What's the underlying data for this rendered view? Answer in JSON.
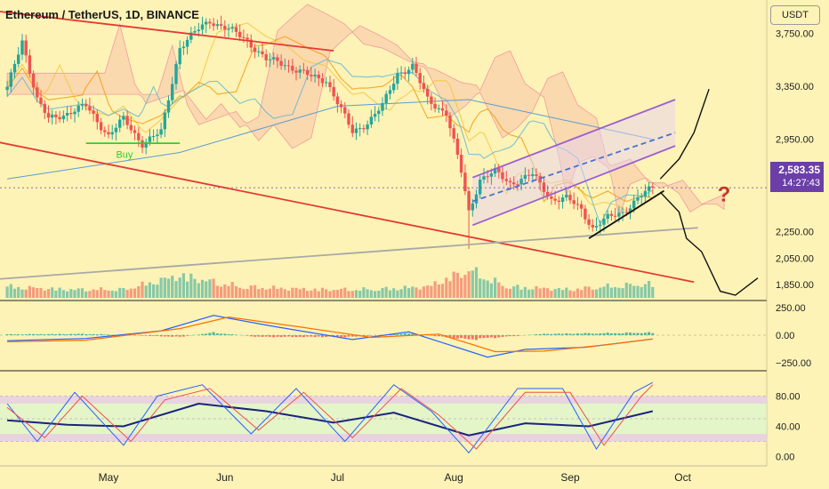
{
  "header": {
    "symbol_title": "Ethereum / TetherUS, 1D, BINANCE",
    "currency_button": "USDT"
  },
  "price_badge": {
    "price": "2,583.35",
    "countdown": "14:27:43"
  },
  "annotation_buy": "Buy",
  "annotation_question": "?",
  "colors": {
    "background": "#fdf3b6",
    "bull": "#26a69a",
    "bear": "#ef5350",
    "channel_red": "#e53935",
    "purple": "#9c5fd0",
    "macd_line": "#2962ff",
    "signal_line": "#ff6d00",
    "stoch_k": "#2962ff",
    "stoch_d": "#ef5350",
    "rsi": "#1a237e"
  },
  "chart_data": [
    {
      "type": "candlestick",
      "pane": "price",
      "title": "Ethereum / TetherUS, 1D, BINANCE",
      "ylim": [
        1750,
        3950
      ],
      "y_ticks": [
        "3,750.00",
        "3,350.00",
        "2,950.00",
        "2,250.00",
        "2,050.00",
        "1,850.00"
      ],
      "y_tick_values": [
        3750,
        3350,
        2950,
        2250,
        2050,
        1850
      ],
      "x_ticks": [
        "May",
        "Jun",
        "Jul",
        "Aug",
        "Sep",
        "Oct"
      ],
      "x_tick_dates": [
        "2024-05-01",
        "2024-06-01",
        "2024-07-01",
        "2024-08-01",
        "2024-09-01",
        "2024-10-01"
      ],
      "last_price": 2583.35,
      "close_path": [
        [
          "2024-04-04",
          3330
        ],
        [
          "2024-04-08",
          3700
        ],
        [
          "2024-04-12",
          3250
        ],
        [
          "2024-04-15",
          3100
        ],
        [
          "2024-04-20",
          3150
        ],
        [
          "2024-04-25",
          3200
        ],
        [
          "2024-05-01",
          2980
        ],
        [
          "2024-05-05",
          3100
        ],
        [
          "2024-05-10",
          2920
        ],
        [
          "2024-05-15",
          3000
        ],
        [
          "2024-05-20",
          3650
        ],
        [
          "2024-05-25",
          3780
        ],
        [
          "2024-05-28",
          3850
        ],
        [
          "2024-06-02",
          3780
        ],
        [
          "2024-06-07",
          3700
        ],
        [
          "2024-06-12",
          3550
        ],
        [
          "2024-06-17",
          3520
        ],
        [
          "2024-06-24",
          3420
        ],
        [
          "2024-06-28",
          3400
        ],
        [
          "2024-07-05",
          3000
        ],
        [
          "2024-07-09",
          3080
        ],
        [
          "2024-07-13",
          3200
        ],
        [
          "2024-07-17",
          3450
        ],
        [
          "2024-07-21",
          3500
        ],
        [
          "2024-07-25",
          3250
        ],
        [
          "2024-07-30",
          3150
        ],
        [
          "2024-08-03",
          2700
        ],
        [
          "2024-08-05",
          2400
        ],
        [
          "2024-08-08",
          2650
        ],
        [
          "2024-08-12",
          2700
        ],
        [
          "2024-08-16",
          2620
        ],
        [
          "2024-08-22",
          2680
        ],
        [
          "2024-08-27",
          2500
        ],
        [
          "2024-08-31",
          2500
        ],
        [
          "2024-09-04",
          2420
        ],
        [
          "2024-09-07",
          2280
        ],
        [
          "2024-09-11",
          2350
        ],
        [
          "2024-09-15",
          2400
        ],
        [
          "2024-09-19",
          2500
        ],
        [
          "2024-09-23",
          2583.35
        ]
      ],
      "volume_path": [
        [
          "2024-04-04",
          0.4
        ],
        [
          "2024-04-20",
          0.3
        ],
        [
          "2024-05-05",
          0.3
        ],
        [
          "2024-05-20",
          0.8
        ],
        [
          "2024-06-05",
          0.4
        ],
        [
          "2024-06-25",
          0.3
        ],
        [
          "2024-07-10",
          0.3
        ],
        [
          "2024-07-25",
          0.4
        ],
        [
          "2024-08-05",
          1.0
        ],
        [
          "2024-08-15",
          0.4
        ],
        [
          "2024-09-01",
          0.3
        ],
        [
          "2024-09-10",
          0.4
        ],
        [
          "2024-09-23",
          0.5
        ]
      ],
      "drawings": [
        {
          "kind": "trendline",
          "color": "#e53935",
          "points": [
            [
              "2024-03-20",
              3960
            ],
            [
              "2024-06-30",
              3620
            ]
          ]
        },
        {
          "kind": "trendline",
          "color": "#e53935",
          "points": [
            [
              "2024-03-20",
              3000
            ],
            [
              "2024-10-04",
              1870
            ]
          ]
        },
        {
          "kind": "trendline",
          "color": "#a8a8a8",
          "points": [
            [
              "2024-03-22",
              1870
            ],
            [
              "2024-10-05",
              2280
            ]
          ]
        },
        {
          "kind": "trendline",
          "color": "#111111",
          "points": [
            [
              "2024-09-06",
              2200
            ],
            [
              "2024-09-26",
              2560
            ]
          ]
        },
        {
          "kind": "trendline",
          "color": "#9c5fd0",
          "points": [
            [
              "2024-08-06",
              2660
            ],
            [
              "2024-09-29",
              3250
            ]
          ]
        },
        {
          "kind": "trendline",
          "color": "#9c5fd0",
          "points": [
            [
              "2024-08-06",
              2300
            ],
            [
              "2024-09-29",
              2900
            ]
          ]
        },
        {
          "kind": "trendline",
          "color": "#4a6fd6",
          "dash": true,
          "points": [
            [
              "2024-08-06",
              2480
            ],
            [
              "2024-09-29",
              3000
            ]
          ]
        },
        {
          "kind": "trendline",
          "color": "#2bd12b",
          "points": [
            [
              "2024-04-25",
              2920
            ],
            [
              "2024-05-20",
              2920
            ]
          ]
        },
        {
          "kind": "projection",
          "color": "#111111",
          "points": [
            [
              "2024-09-25",
              2650
            ],
            [
              "2024-09-30",
              2800
            ],
            [
              "2024-10-04",
              3000
            ],
            [
              "2024-10-08",
              3330
            ]
          ]
        },
        {
          "kind": "projection",
          "color": "#111111",
          "points": [
            [
              "2024-09-25",
              2550
            ],
            [
              "2024-09-30",
              2400
            ],
            [
              "2024-10-02",
              2200
            ],
            [
              "2024-10-06",
              2100
            ],
            [
              "2024-10-11",
              1800
            ],
            [
              "2024-10-15",
              1770
            ],
            [
              "2024-10-21",
              1900
            ]
          ]
        }
      ],
      "annotations": [
        {
          "text": "Buy",
          "date": "2024-05-03",
          "price": 2810,
          "color": "#2bd12b"
        },
        {
          "text": "?",
          "date": "2024-10-12",
          "price": 2480,
          "color": "#c0392b"
        }
      ]
    },
    {
      "type": "line",
      "pane": "macd",
      "ylim": [
        -300,
        300
      ],
      "y_ticks": [
        "250.00",
        "0.00",
        "−250.00"
      ],
      "y_tick_values": [
        250,
        0,
        -250
      ],
      "series": [
        {
          "kind": "macd",
          "color": "#2962ff",
          "points": [
            [
              "2024-04-04",
              -50
            ],
            [
              "2024-04-25",
              -30
            ],
            [
              "2024-05-15",
              40
            ],
            [
              "2024-05-29",
              180
            ],
            [
              "2024-06-14",
              80
            ],
            [
              "2024-07-05",
              -40
            ],
            [
              "2024-07-20",
              30
            ],
            [
              "2024-08-10",
              -200
            ],
            [
              "2024-08-20",
              -130
            ],
            [
              "2024-09-05",
              -110
            ],
            [
              "2024-09-23",
              -35
            ]
          ]
        },
        {
          "kind": "signal",
          "color": "#ff6d00",
          "points": [
            [
              "2024-04-04",
              -60
            ],
            [
              "2024-04-25",
              -45
            ],
            [
              "2024-05-20",
              60
            ],
            [
              "2024-06-02",
              165
            ],
            [
              "2024-06-20",
              80
            ],
            [
              "2024-07-10",
              -20
            ],
            [
              "2024-07-28",
              10
            ],
            [
              "2024-08-12",
              -150
            ],
            [
              "2024-08-25",
              -145
            ],
            [
              "2024-09-10",
              -90
            ],
            [
              "2024-09-23",
              -35
            ]
          ]
        }
      ],
      "histogram_path": [
        [
          "2024-04-04",
          10
        ],
        [
          "2024-04-25",
          15
        ],
        [
          "2024-05-20",
          -20
        ],
        [
          "2024-05-29",
          30
        ],
        [
          "2024-06-10",
          -20
        ],
        [
          "2024-07-05",
          -20
        ],
        [
          "2024-07-20",
          20
        ],
        [
          "2024-08-05",
          -50
        ],
        [
          "2024-08-25",
          15
        ],
        [
          "2024-09-23",
          30
        ]
      ]
    },
    {
      "type": "line",
      "pane": "oscillator",
      "ylim": [
        -10,
        110
      ],
      "y_ticks": [
        "80.00",
        "40.00",
        "0.00"
      ],
      "y_tick_values": [
        80,
        40,
        0
      ],
      "bands": [
        [
          20,
          80
        ],
        [
          20,
          30
        ],
        [
          70,
          80
        ]
      ],
      "series": [
        {
          "kind": "rsi",
          "color": "#1a237e",
          "points": [
            [
              "2024-04-04",
              48
            ],
            [
              "2024-04-20",
              42
            ],
            [
              "2024-05-05",
              40
            ],
            [
              "2024-05-25",
              70
            ],
            [
              "2024-06-12",
              60
            ],
            [
              "2024-06-30",
              45
            ],
            [
              "2024-07-16",
              58
            ],
            [
              "2024-08-05",
              28
            ],
            [
              "2024-08-20",
              44
            ],
            [
              "2024-09-06",
              40
            ],
            [
              "2024-09-23",
              60
            ]
          ]
        },
        {
          "kind": "stoch_k",
          "color": "#2962ff",
          "points": [
            [
              "2024-04-04",
              70
            ],
            [
              "2024-04-12",
              20
            ],
            [
              "2024-04-22",
              85
            ],
            [
              "2024-05-05",
              15
            ],
            [
              "2024-05-14",
              80
            ],
            [
              "2024-05-26",
              95
            ],
            [
              "2024-06-08",
              30
            ],
            [
              "2024-06-20",
              90
            ],
            [
              "2024-07-03",
              20
            ],
            [
              "2024-07-16",
              95
            ],
            [
              "2024-07-26",
              60
            ],
            [
              "2024-08-05",
              5
            ],
            [
              "2024-08-18",
              90
            ],
            [
              "2024-08-30",
              90
            ],
            [
              "2024-09-08",
              10
            ],
            [
              "2024-09-18",
              85
            ],
            [
              "2024-09-23",
              98
            ]
          ]
        },
        {
          "kind": "stoch_d",
          "color": "#ef5350",
          "points": [
            [
              "2024-04-04",
              65
            ],
            [
              "2024-04-14",
              25
            ],
            [
              "2024-04-24",
              80
            ],
            [
              "2024-05-07",
              20
            ],
            [
              "2024-05-16",
              75
            ],
            [
              "2024-05-28",
              90
            ],
            [
              "2024-06-10",
              35
            ],
            [
              "2024-06-22",
              85
            ],
            [
              "2024-07-05",
              25
            ],
            [
              "2024-07-18",
              90
            ],
            [
              "2024-07-28",
              55
            ],
            [
              "2024-08-07",
              10
            ],
            [
              "2024-08-20",
              85
            ],
            [
              "2024-09-01",
              85
            ],
            [
              "2024-09-10",
              15
            ],
            [
              "2024-09-20",
              80
            ],
            [
              "2024-09-23",
              95
            ]
          ]
        }
      ]
    }
  ]
}
